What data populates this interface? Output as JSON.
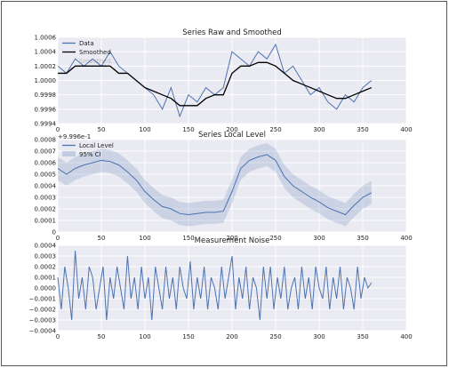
{
  "chart_data": [
    {
      "type": "line",
      "title": "Series Raw and Smoothed",
      "xlim": [
        0,
        400
      ],
      "ylim": [
        0.9994,
        1.0006
      ],
      "xticks": [
        0,
        50,
        100,
        150,
        200,
        250,
        300,
        350,
        400
      ],
      "xtick_labels": [
        "0",
        "50",
        "100",
        "150",
        "200",
        "250",
        "300",
        "350",
        "400"
      ],
      "yticks": [
        0.9994,
        0.9996,
        0.9998,
        1.0,
        1.0002,
        1.0004,
        1.0006
      ],
      "ytick_labels": [
        "0.9994",
        "0.9996",
        "0.9998",
        "1.0000",
        "1.0002",
        "1.0004",
        "1.0006"
      ],
      "grid": true,
      "legend": "top-left",
      "series": [
        {
          "name": "Data",
          "color": "#4c72b0",
          "x": [
            0,
            10,
            20,
            30,
            40,
            50,
            60,
            70,
            80,
            90,
            100,
            110,
            120,
            130,
            140,
            150,
            160,
            170,
            180,
            190,
            200,
            210,
            220,
            230,
            240,
            250,
            260,
            270,
            280,
            290,
            300,
            310,
            320,
            330,
            340,
            350,
            360
          ],
          "y": [
            1.0002,
            1.0001,
            1.0003,
            1.0002,
            1.0003,
            1.0002,
            1.0004,
            1.0002,
            1.0001,
            1.0,
            0.9999,
            0.9998,
            0.9996,
            0.9999,
            0.9995,
            0.9998,
            0.9997,
            0.9999,
            0.9998,
            0.9999,
            1.0004,
            1.0003,
            1.0002,
            1.0004,
            1.0003,
            1.0005,
            1.0001,
            1.0002,
            1.0,
            0.9998,
            0.9999,
            0.9997,
            0.9996,
            0.9998,
            0.9997,
            0.9999,
            1.0
          ]
        },
        {
          "name": "Smoothed",
          "color": "#000000",
          "x": [
            0,
            10,
            20,
            30,
            40,
            50,
            60,
            70,
            80,
            90,
            100,
            110,
            120,
            130,
            140,
            150,
            160,
            170,
            180,
            190,
            200,
            210,
            220,
            230,
            240,
            250,
            260,
            270,
            280,
            290,
            300,
            310,
            320,
            330,
            340,
            350,
            360
          ],
          "y": [
            1.0001,
            1.0001,
            1.0002,
            1.0002,
            1.0002,
            1.0002,
            1.0002,
            1.0001,
            1.0001,
            1.0,
            0.9999,
            0.99985,
            0.9998,
            0.99975,
            0.99965,
            0.99965,
            0.99965,
            0.99975,
            0.9998,
            0.9998,
            1.0001,
            1.0002,
            1.0002,
            1.00025,
            1.00025,
            1.0002,
            1.0001,
            1.0,
            0.99995,
            0.9999,
            0.99985,
            0.9998,
            0.99975,
            0.99975,
            0.9998,
            0.99985,
            0.9999
          ]
        }
      ],
      "extra_legend_text": "Smoothed..."
    },
    {
      "type": "line",
      "title": "Series Local Level",
      "offset_text": "+9.996e-1",
      "xlim": [
        0,
        400
      ],
      "ylim": [
        0,
        0.0008
      ],
      "xticks": [
        0,
        50,
        100,
        150,
        200,
        250,
        300,
        350,
        400
      ],
      "xtick_labels": [
        "0",
        "50",
        "100",
        "150",
        "200",
        "250",
        "300",
        "350",
        "400"
      ],
      "yticks": [
        0,
        0.0001,
        0.0002,
        0.0003,
        0.0004,
        0.0005,
        0.0006,
        0.0007,
        0.0008
      ],
      "ytick_labels": [
        "0",
        "0.0001",
        "0.0002",
        "0.0003",
        "0.0004",
        "0.0005",
        "0.0006",
        "0.0007",
        "0.0008"
      ],
      "grid": true,
      "legend": "top-left",
      "series": [
        {
          "name": "Local Level",
          "color": "#4c72b0",
          "x": [
            0,
            10,
            20,
            30,
            40,
            50,
            60,
            70,
            80,
            90,
            100,
            110,
            120,
            130,
            140,
            150,
            160,
            170,
            180,
            190,
            200,
            210,
            220,
            230,
            240,
            250,
            260,
            270,
            280,
            290,
            300,
            310,
            320,
            330,
            340,
            350,
            360
          ],
          "y": [
            0.00055,
            0.0005,
            0.00055,
            0.00058,
            0.0006,
            0.00062,
            0.00061,
            0.00058,
            0.00052,
            0.00045,
            0.00035,
            0.00028,
            0.00022,
            0.0002,
            0.00016,
            0.00015,
            0.00016,
            0.00017,
            0.00017,
            0.00018,
            0.00035,
            0.00055,
            0.00062,
            0.00065,
            0.00067,
            0.00062,
            0.00048,
            0.0004,
            0.00035,
            0.0003,
            0.00026,
            0.00021,
            0.00018,
            0.00015,
            0.00023,
            0.0003,
            0.00034
          ]
        }
      ],
      "band": {
        "name": "95% CI",
        "color": "#4c72b0",
        "halfwidth": 0.0001
      }
    },
    {
      "type": "line",
      "title": "Measurement Noise",
      "xlim": [
        0,
        400
      ],
      "ylim": [
        -0.0004,
        0.0004
      ],
      "xticks": [
        0,
        50,
        100,
        150,
        200,
        250,
        300,
        350,
        400
      ],
      "xtick_labels": [
        "0",
        "50",
        "100",
        "150",
        "200",
        "250",
        "300",
        "350",
        "400"
      ],
      "yticks": [
        -0.0004,
        -0.0003,
        -0.0002,
        -0.0001,
        0.0,
        0.0001,
        0.0002,
        0.0003,
        0.0004
      ],
      "ytick_labels": [
        "−0.0004",
        "−0.0003",
        "−0.0002",
        "−0.0001",
        "0.0000",
        "0.0001",
        "0.0002",
        "0.0003",
        "0.0004"
      ],
      "grid": true,
      "series": [
        {
          "color": "#4c72b0",
          "x": [
            0,
            4,
            8,
            12,
            16,
            20,
            24,
            28,
            32,
            36,
            40,
            44,
            48,
            52,
            56,
            60,
            64,
            68,
            72,
            76,
            80,
            84,
            88,
            92,
            96,
            100,
            104,
            108,
            112,
            116,
            120,
            124,
            128,
            132,
            136,
            140,
            144,
            148,
            152,
            156,
            160,
            164,
            168,
            172,
            176,
            180,
            184,
            188,
            192,
            196,
            200,
            204,
            208,
            212,
            216,
            220,
            224,
            228,
            232,
            236,
            240,
            244,
            248,
            252,
            256,
            260,
            264,
            268,
            272,
            276,
            280,
            284,
            288,
            292,
            296,
            300,
            304,
            308,
            312,
            316,
            320,
            324,
            328,
            332,
            336,
            340,
            344,
            348,
            352,
            356,
            360
          ],
          "y": [
            0.0001,
            -0.0002,
            0.0002,
            0.0,
            -0.0003,
            0.00035,
            -0.0001,
            0.0001,
            -0.0002,
            0.0002,
            0.0001,
            -0.0002,
            0.0,
            0.0002,
            -0.0003,
            0.0001,
            -0.0001,
            0.0002,
            0.0,
            -0.0002,
            0.0003,
            -0.0001,
            0.0001,
            -0.0002,
            0.0002,
            -0.0001,
            0.0001,
            -0.0003,
            0.0002,
            0.0,
            -0.0002,
            0.0002,
            -0.0001,
            0.0001,
            -0.0002,
            0.0002,
            0.0,
            -0.0001,
            0.00025,
            -0.0002,
            0.0001,
            -0.0001,
            0.0002,
            -0.0002,
            0.0001,
            0.0,
            -0.0002,
            0.0002,
            -0.0001,
            0.0001,
            0.0003,
            -0.0002,
            0.0001,
            -0.0001,
            0.0002,
            -0.0002,
            0.0001,
            0.0,
            -0.0003,
            0.0002,
            -0.0001,
            0.0002,
            -0.0002,
            0.0001,
            -0.0001,
            0.0002,
            -0.0002,
            0.0,
            0.0001,
            -0.0002,
            0.0002,
            -0.0001,
            0.0001,
            -0.0002,
            0.0002,
            0.0,
            -0.0001,
            0.0002,
            -0.0002,
            0.0001,
            -0.0001,
            0.0002,
            -0.0002,
            0.0001,
            0.0,
            -0.0002,
            0.0002,
            -0.0001,
            0.0001,
            0.0,
            5e-05
          ]
        }
      ]
    }
  ]
}
